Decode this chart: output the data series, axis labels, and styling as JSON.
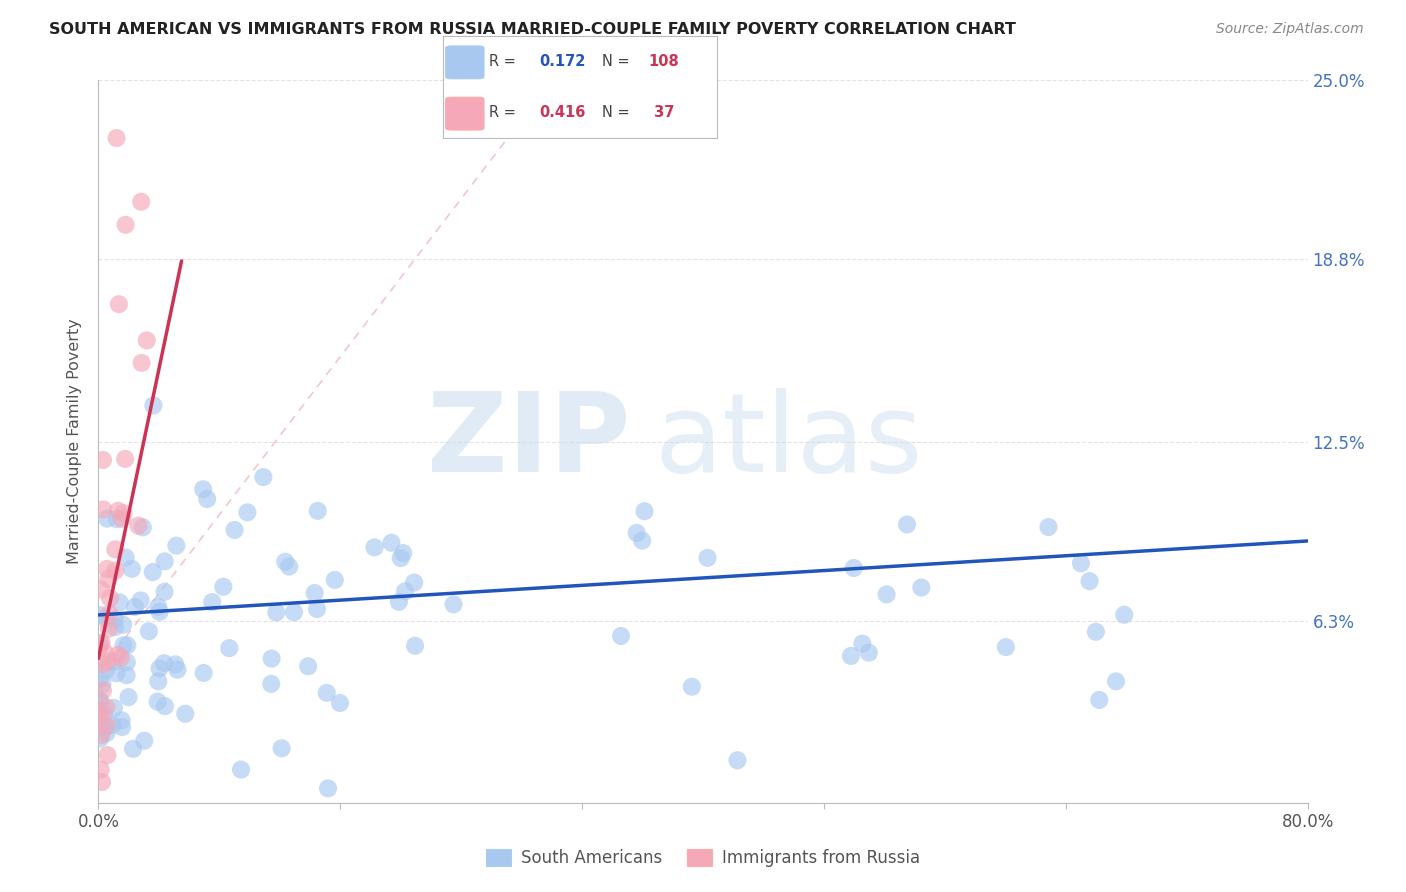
{
  "title": "SOUTH AMERICAN VS IMMIGRANTS FROM RUSSIA MARRIED-COUPLE FAMILY POVERTY CORRELATION CHART",
  "source": "Source: ZipAtlas.com",
  "ylabel": "Married-Couple Family Poverty",
  "xmin": 0.0,
  "xmax": 80.0,
  "ymin": 0.0,
  "ymax": 25.0,
  "color_blue": "#A8C8F0",
  "color_pink": "#F4A8B8",
  "color_blue_line": "#2255BB",
  "color_pink_line": "#CC3355",
  "color_diag_line": "#F0B8C0",
  "background_color": "#FFFFFF",
  "grid_color": "#DDDDDD",
  "legend_r1_val": "0.172",
  "legend_n1_val": "108",
  "legend_r2_val": "0.416",
  "legend_n2_val": " 37",
  "legend_color_r": "#2255BB",
  "legend_color_n": "#CC3355",
  "watermark_zip_color": "#C8DCF0",
  "watermark_atlas_color": "#C8DCF0"
}
